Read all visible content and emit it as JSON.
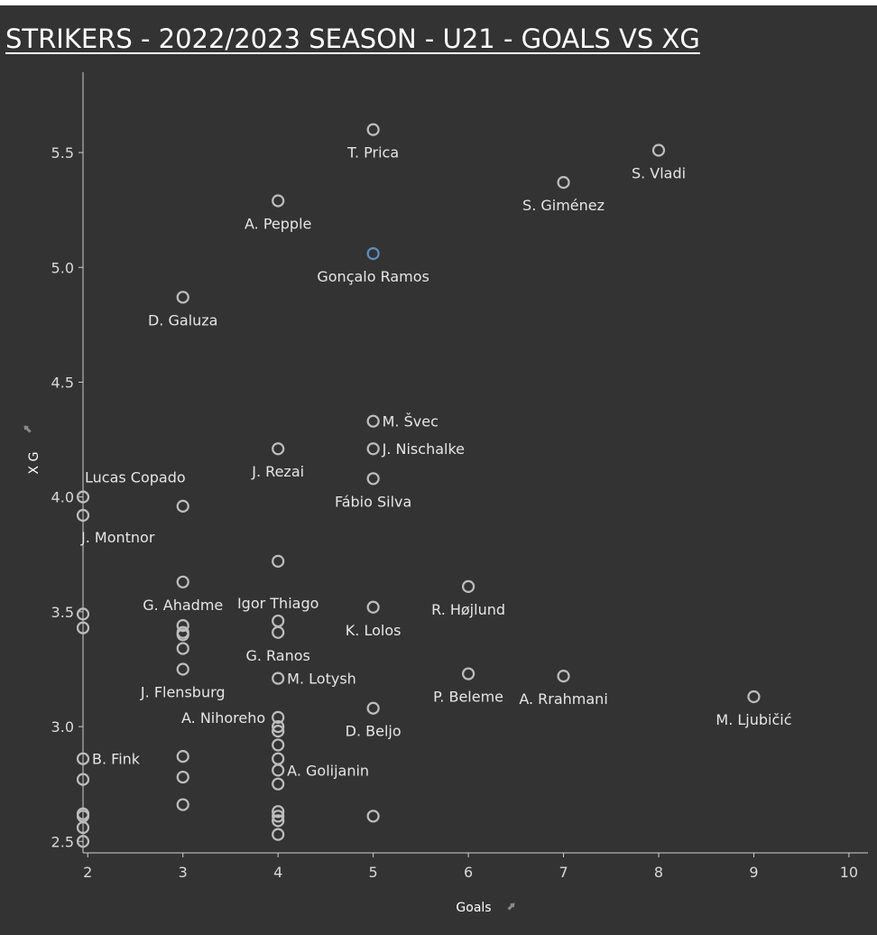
{
  "title": "STRIKERS - 2022/2023 SEASON - U21 - GOALS VS XG",
  "colors": {
    "background": "#333333",
    "marker": "#bdbdbd",
    "highlight": "#5b8fbf",
    "text": "#e6e6e6"
  },
  "icons": {
    "pin": "pin-icon"
  },
  "chart_data": {
    "type": "scatter",
    "title": "STRIKERS - 2022/2023 SEASON - U21 - GOALS VS XG",
    "xlabel": "Goals",
    "ylabel": "X G",
    "xlim": [
      1.95,
      10.2
    ],
    "ylim": [
      2.45,
      5.85
    ],
    "xticks": [
      2,
      3,
      4,
      5,
      6,
      7,
      8,
      9,
      10
    ],
    "yticks": [
      2.5,
      3.0,
      3.5,
      4.0,
      4.5,
      5.0,
      5.5
    ],
    "xtick_labels": [
      "2",
      "3",
      "4",
      "5",
      "6",
      "7",
      "8",
      "9",
      "10"
    ],
    "ytick_labels": [
      "2.5",
      "3.0",
      "3.5",
      "4.0",
      "4.5",
      "5.0",
      "5.5"
    ],
    "grid": false,
    "points": [
      {
        "x": 5,
        "y": 5.6,
        "label": "T. Prica",
        "pos": "below"
      },
      {
        "x": 8,
        "y": 5.51,
        "label": "S. Vladi",
        "pos": "below"
      },
      {
        "x": 7,
        "y": 5.37,
        "label": "S. Giménez",
        "pos": "below"
      },
      {
        "x": 4,
        "y": 5.29,
        "label": "A. Pepple",
        "pos": "below"
      },
      {
        "x": 5,
        "y": 5.06,
        "label": "Gonçalo Ramos",
        "pos": "below",
        "highlight": true
      },
      {
        "x": 3,
        "y": 4.87,
        "label": "D. Galuza",
        "pos": "below"
      },
      {
        "x": 5,
        "y": 4.33,
        "label": "M. Švec",
        "pos": "right"
      },
      {
        "x": 5,
        "y": 4.21,
        "label": "J. Nischalke",
        "pos": "right"
      },
      {
        "x": 4,
        "y": 4.21,
        "label": "J. Rezai",
        "pos": "below"
      },
      {
        "x": 5,
        "y": 4.08,
        "label": "Fábio Silva",
        "pos": "below"
      },
      {
        "x": 1.95,
        "y": 4.0,
        "label": "Lucas Copado",
        "pos": "above-right"
      },
      {
        "x": 1.95,
        "y": 3.92,
        "label": "J. Montnor",
        "pos": "below-right"
      },
      {
        "x": 3,
        "y": 3.96,
        "label": "",
        "pos": "none"
      },
      {
        "x": 4,
        "y": 3.72,
        "label": "",
        "pos": "none"
      },
      {
        "x": 3,
        "y": 3.63,
        "label": "G. Ahadme",
        "pos": "below"
      },
      {
        "x": 6,
        "y": 3.61,
        "label": "R. Højlund",
        "pos": "below"
      },
      {
        "x": 4,
        "y": 3.46,
        "label": "Igor Thiago",
        "pos": "above"
      },
      {
        "x": 5,
        "y": 3.52,
        "label": "K. Lolos",
        "pos": "below"
      },
      {
        "x": 1.95,
        "y": 3.49,
        "label": "",
        "pos": "none"
      },
      {
        "x": 1.95,
        "y": 3.43,
        "label": "",
        "pos": "none"
      },
      {
        "x": 3,
        "y": 3.44,
        "label": "",
        "pos": "none"
      },
      {
        "x": 3,
        "y": 3.41,
        "label": "",
        "pos": "none"
      },
      {
        "x": 3,
        "y": 3.4,
        "label": "",
        "pos": "none"
      },
      {
        "x": 3,
        "y": 3.34,
        "label": "",
        "pos": "none"
      },
      {
        "x": 4,
        "y": 3.41,
        "label": "G. Ranos",
        "pos": "below"
      },
      {
        "x": 3,
        "y": 3.25,
        "label": "J. Flensburg",
        "pos": "below"
      },
      {
        "x": 6,
        "y": 3.23,
        "label": "P. Beleme",
        "pos": "below"
      },
      {
        "x": 7,
        "y": 3.22,
        "label": "A. Rrahmani",
        "pos": "below"
      },
      {
        "x": 4,
        "y": 3.21,
        "label": "M. Lotysh",
        "pos": "right"
      },
      {
        "x": 9,
        "y": 3.13,
        "label": "M. Ljubičić",
        "pos": "below"
      },
      {
        "x": 5,
        "y": 3.08,
        "label": "D. Beljo",
        "pos": "below"
      },
      {
        "x": 4,
        "y": 3.04,
        "label": "A. Nihoreho",
        "pos": "left"
      },
      {
        "x": 4,
        "y": 3.0,
        "label": "",
        "pos": "none"
      },
      {
        "x": 4,
        "y": 2.98,
        "label": "",
        "pos": "none"
      },
      {
        "x": 4,
        "y": 2.92,
        "label": "",
        "pos": "none"
      },
      {
        "x": 4,
        "y": 2.86,
        "label": "",
        "pos": "none"
      },
      {
        "x": 4,
        "y": 2.81,
        "label": "A. Golijanin",
        "pos": "right"
      },
      {
        "x": 4,
        "y": 2.75,
        "label": "",
        "pos": "none"
      },
      {
        "x": 1.95,
        "y": 2.86,
        "label": "B. Fink",
        "pos": "right"
      },
      {
        "x": 1.95,
        "y": 2.77,
        "label": "",
        "pos": "none"
      },
      {
        "x": 3,
        "y": 2.87,
        "label": "",
        "pos": "none"
      },
      {
        "x": 3,
        "y": 2.78,
        "label": "",
        "pos": "none"
      },
      {
        "x": 3,
        "y": 2.66,
        "label": "",
        "pos": "none"
      },
      {
        "x": 4,
        "y": 2.63,
        "label": "",
        "pos": "none"
      },
      {
        "x": 4,
        "y": 2.61,
        "label": "",
        "pos": "none"
      },
      {
        "x": 4,
        "y": 2.59,
        "label": "",
        "pos": "none"
      },
      {
        "x": 4,
        "y": 2.53,
        "label": "",
        "pos": "none"
      },
      {
        "x": 5,
        "y": 2.61,
        "label": "",
        "pos": "none"
      },
      {
        "x": 1.95,
        "y": 2.62,
        "label": "",
        "pos": "none"
      },
      {
        "x": 1.95,
        "y": 2.61,
        "label": "",
        "pos": "none"
      },
      {
        "x": 1.95,
        "y": 2.56,
        "label": "",
        "pos": "none"
      },
      {
        "x": 1.95,
        "y": 2.5,
        "label": "",
        "pos": "none"
      }
    ]
  }
}
